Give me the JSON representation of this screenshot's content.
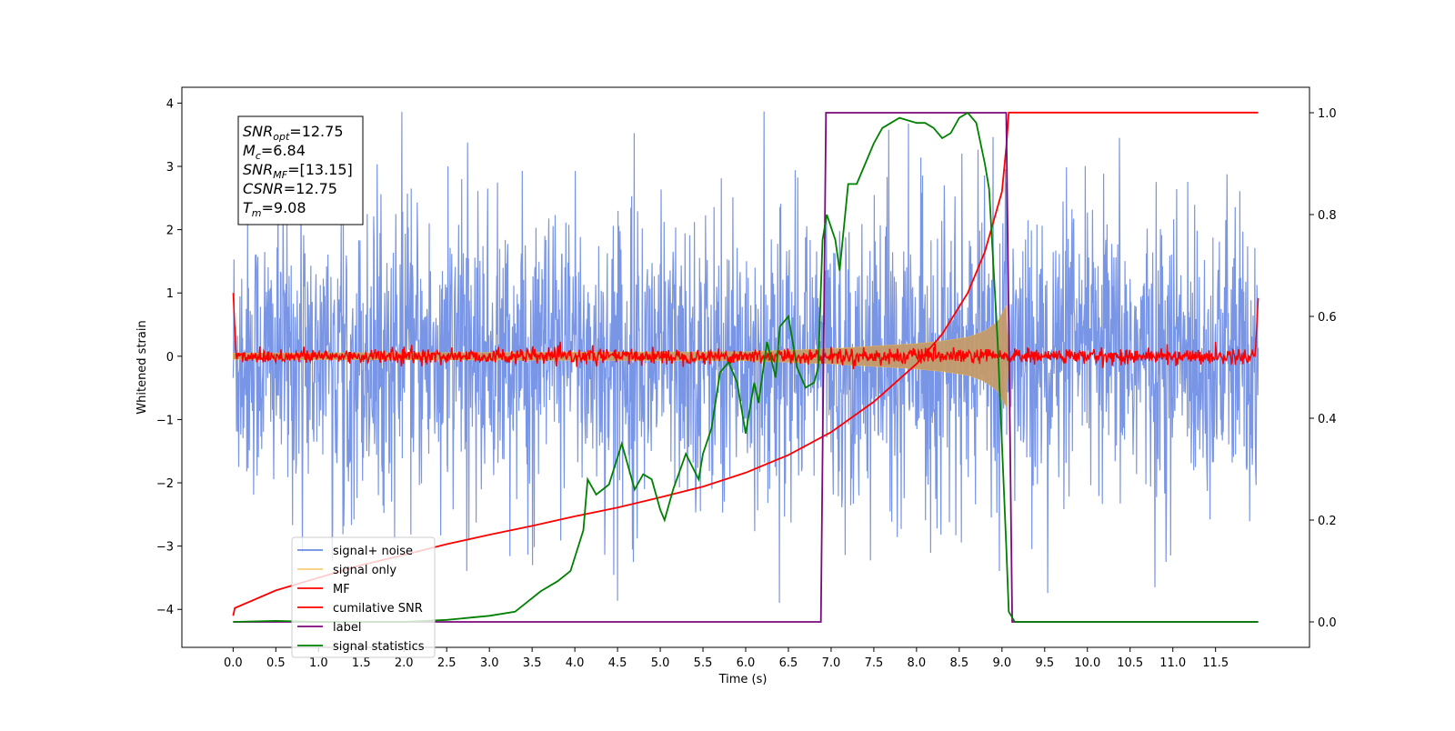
{
  "chart_data": {
    "type": "line",
    "title": "",
    "xlabel": "Time (s)",
    "ylabel": "Whitened strain",
    "xlim": [
      -0.6,
      12.6
    ],
    "ylim": [
      -4.6,
      4.25
    ],
    "ylim_right": [
      -0.05,
      1.05
    ],
    "xticks": [
      "0.0",
      "0.5",
      "1.0",
      "1.5",
      "2.0",
      "2.5",
      "3.0",
      "3.5",
      "4.0",
      "4.5",
      "5.0",
      "5.5",
      "6.0",
      "6.5",
      "7.0",
      "7.5",
      "8.0",
      "8.5",
      "9.0",
      "9.5",
      "10.0",
      "10.5",
      "11.0",
      "11.5"
    ],
    "yticks_left": [
      "4",
      "3",
      "2",
      "1",
      "0",
      "−1",
      "−2",
      "−3",
      "−4"
    ],
    "yticks_right": [
      "1.0",
      "0.8",
      "0.6",
      "0.4",
      "0.2",
      "0.0"
    ],
    "grid": false,
    "legend_position": "lower-left",
    "info_box": {
      "lines": [
        {
          "sym": "SNR",
          "sub": "opt",
          "val": "=12.75"
        },
        {
          "sym": "M",
          "sub": "c",
          "val": "=6.84"
        },
        {
          "sym": "SNR",
          "sub": "MF",
          "val": "=[13.15]"
        },
        {
          "sym": "CSNR",
          "sub": "",
          "val": "=12.75"
        },
        {
          "sym": "T",
          "sub": "m",
          "val": "=9.08"
        }
      ]
    },
    "series": [
      {
        "name": "signal+ noise",
        "color": "#6a89e3",
        "axis": "left",
        "kind": "noise",
        "amplitude_std": 1.0,
        "x_range": [
          0.0,
          12.0
        ]
      },
      {
        "name": "signal only",
        "color": "#f5b840",
        "axis": "left",
        "kind": "chirp_envelope",
        "x": [
          0.0,
          6.0,
          7.0,
          7.5,
          8.0,
          8.3,
          8.6,
          8.8,
          8.95,
          9.05,
          9.08
        ],
        "amplitude": [
          0.05,
          0.07,
          0.12,
          0.16,
          0.2,
          0.24,
          0.3,
          0.4,
          0.55,
          0.8,
          0.0
        ]
      },
      {
        "name": "MF",
        "color": "#ff0000",
        "axis": "left",
        "kind": "noise",
        "amplitude_std": 0.06,
        "x_range": [
          0.0,
          12.0
        ],
        "edge_points": [
          [
            0.0,
            1.0
          ],
          [
            0.03,
            0.15
          ],
          [
            11.97,
            0.15
          ],
          [
            12.0,
            0.92
          ]
        ]
      },
      {
        "name": "cumilative SNR",
        "color": "#ff0000",
        "axis": "left",
        "x": [
          0.0,
          0.02,
          0.5,
          1.0,
          1.5,
          2.0,
          2.5,
          3.0,
          3.5,
          4.0,
          4.5,
          5.0,
          5.5,
          6.0,
          6.5,
          7.0,
          7.5,
          8.0,
          8.3,
          8.6,
          8.8,
          9.0,
          9.05,
          9.08,
          12.0
        ],
        "y": [
          -4.1,
          -3.98,
          -3.7,
          -3.5,
          -3.3,
          -3.14,
          -2.97,
          -2.82,
          -2.68,
          -2.53,
          -2.39,
          -2.23,
          -2.06,
          -1.84,
          -1.56,
          -1.2,
          -0.72,
          -0.12,
          0.35,
          1.0,
          1.65,
          2.6,
          3.3,
          3.85,
          3.85
        ]
      },
      {
        "name": "label",
        "color": "#7b0a7b",
        "axis": "right",
        "x": [
          0.0,
          6.88,
          6.94,
          9.05,
          9.12,
          12.0
        ],
        "y": [
          0.0,
          0.0,
          1.0,
          1.0,
          0.0,
          0.0
        ]
      },
      {
        "name": "signal statistics",
        "color": "#008000",
        "axis": "right",
        "x": [
          0.0,
          0.5,
          1.0,
          2.0,
          2.5,
          3.0,
          3.3,
          3.45,
          3.6,
          3.8,
          3.95,
          4.1,
          4.15,
          4.25,
          4.4,
          4.55,
          4.7,
          4.8,
          4.9,
          5.0,
          5.05,
          5.15,
          5.3,
          5.45,
          5.5,
          5.6,
          5.7,
          5.8,
          5.9,
          6.0,
          6.1,
          6.15,
          6.25,
          6.35,
          6.4,
          6.5,
          6.6,
          6.7,
          6.8,
          6.85,
          6.9,
          6.95,
          7.05,
          7.1,
          7.2,
          7.3,
          7.4,
          7.5,
          7.6,
          7.7,
          7.8,
          8.0,
          8.1,
          8.2,
          8.3,
          8.4,
          8.5,
          8.6,
          8.7,
          8.8,
          8.85,
          8.95,
          9.05,
          9.08,
          9.15,
          9.2,
          12.0
        ],
        "y": [
          0.0,
          0.002,
          0.0,
          0.0,
          0.004,
          0.012,
          0.02,
          0.04,
          0.06,
          0.08,
          0.1,
          0.18,
          0.28,
          0.25,
          0.27,
          0.35,
          0.26,
          0.29,
          0.28,
          0.22,
          0.2,
          0.26,
          0.33,
          0.28,
          0.33,
          0.38,
          0.49,
          0.51,
          0.47,
          0.37,
          0.47,
          0.43,
          0.55,
          0.48,
          0.58,
          0.6,
          0.5,
          0.46,
          0.47,
          0.5,
          0.75,
          0.8,
          0.75,
          0.69,
          0.86,
          0.86,
          0.9,
          0.94,
          0.97,
          0.98,
          0.99,
          0.98,
          0.98,
          0.97,
          0.95,
          0.96,
          0.99,
          1.0,
          0.98,
          0.9,
          0.85,
          0.55,
          0.15,
          0.02,
          0.0,
          0.0,
          0.0
        ]
      }
    ]
  }
}
